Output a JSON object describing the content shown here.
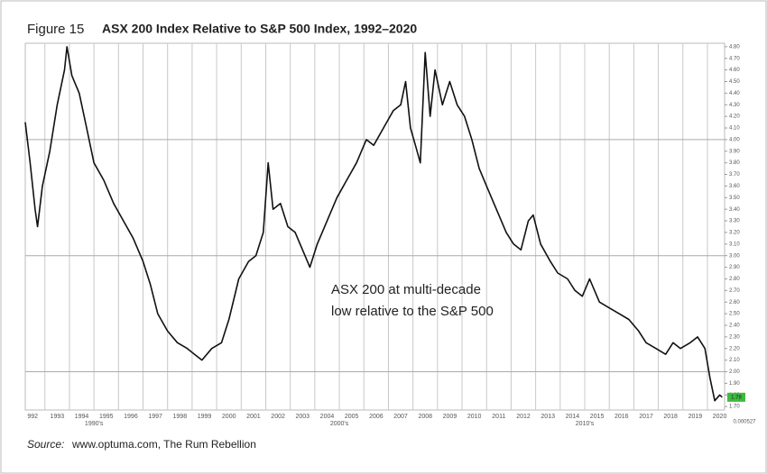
{
  "chart_data": {
    "type": "line",
    "figure_label": "Figure 15",
    "title": "ASX 200 Index Relative to S&P 500 Index, 1992–2020",
    "annotation": [
      "ASX 200 at multi-decade",
      "low relative to the S&P 500"
    ],
    "source_label": "Source:",
    "source": "www.optuma.com, The Rum Rebellion",
    "decade_labels": [
      "1990's",
      "2000's",
      "2010's"
    ],
    "last_value_label": "1.78",
    "footer_value": "0.000527",
    "x": [
      1992.2,
      1992.4,
      1992.6,
      1992.7,
      1992.9,
      1993.2,
      1993.5,
      1993.8,
      1993.9,
      1994.1,
      1994.4,
      1994.7,
      1995.0,
      1995.4,
      1995.8,
      1996.2,
      1996.6,
      1997.0,
      1997.3,
      1997.6,
      1998.0,
      1998.4,
      1998.8,
      1999.1,
      1999.4,
      1999.8,
      2000.2,
      2000.5,
      2000.9,
      2001.3,
      2001.6,
      2001.9,
      2002.1,
      2002.3,
      2002.6,
      2002.9,
      2003.2,
      2003.6,
      2003.8,
      2004.1,
      2004.5,
      2004.9,
      2005.3,
      2005.7,
      2006.1,
      2006.4,
      2006.8,
      2007.2,
      2007.5,
      2007.7,
      2007.9,
      2008.1,
      2008.3,
      2008.5,
      2008.7,
      2008.9,
      2009.2,
      2009.5,
      2009.8,
      2010.1,
      2010.4,
      2010.7,
      2011.0,
      2011.4,
      2011.8,
      2012.1,
      2012.4,
      2012.7,
      2012.9,
      2013.2,
      2013.6,
      2013.9,
      2014.3,
      2014.6,
      2014.9,
      2015.2,
      2015.6,
      2016.0,
      2016.4,
      2016.8,
      2017.2,
      2017.5,
      2017.9,
      2018.3,
      2018.6,
      2018.9,
      2019.3,
      2019.6,
      2019.9,
      2020.1,
      2020.3,
      2020.5,
      2020.6
    ],
    "series": [
      {
        "color": "#111111",
        "values": [
          4.15,
          3.8,
          3.4,
          3.25,
          3.6,
          3.9,
          4.3,
          4.6,
          4.8,
          4.55,
          4.4,
          4.1,
          3.8,
          3.65,
          3.45,
          3.3,
          3.15,
          2.95,
          2.75,
          2.5,
          2.35,
          2.25,
          2.2,
          2.15,
          2.1,
          2.2,
          2.25,
          2.45,
          2.8,
          2.95,
          3.0,
          3.2,
          3.8,
          3.4,
          3.45,
          3.25,
          3.2,
          3.0,
          2.9,
          3.1,
          3.3,
          3.5,
          3.65,
          3.8,
          4.0,
          3.95,
          4.1,
          4.25,
          4.3,
          4.5,
          4.1,
          3.95,
          3.8,
          4.75,
          4.2,
          4.6,
          4.3,
          4.5,
          4.3,
          4.2,
          4.0,
          3.75,
          3.6,
          3.4,
          3.2,
          3.1,
          3.05,
          3.3,
          3.35,
          3.1,
          2.95,
          2.85,
          2.8,
          2.7,
          2.65,
          2.8,
          2.6,
          2.55,
          2.5,
          2.45,
          2.35,
          2.25,
          2.2,
          2.15,
          2.25,
          2.2,
          2.25,
          2.3,
          2.2,
          1.95,
          1.75,
          1.8,
          1.78
        ]
      }
    ],
    "xlim": [
      1992.2,
      2020.7
    ],
    "xticks": [
      {
        "value": 1992,
        "label": "992"
      },
      1993,
      1994,
      1995,
      1996,
      1997,
      1998,
      1999,
      2000,
      2001,
      2002,
      2003,
      2004,
      2005,
      2006,
      2007,
      2008,
      2009,
      2010,
      2011,
      2012,
      2013,
      2014,
      2015,
      2016,
      2017,
      2018,
      2019,
      2020
    ],
    "ylim": [
      1.67,
      4.83
    ],
    "yticks": [
      {
        "value": 1.7,
        "label": "1.70"
      },
      {
        "value": 1.8,
        "label": "1.80"
      },
      {
        "value": 1.9,
        "label": "1.90"
      },
      {
        "value": 2.0,
        "label": "2.00"
      },
      {
        "value": 2.1,
        "label": "2.10"
      },
      {
        "value": 2.2,
        "label": "2.20"
      },
      {
        "value": 2.3,
        "label": "2.30"
      },
      {
        "value": 2.4,
        "label": "2.40"
      },
      {
        "value": 2.5,
        "label": "2.50"
      },
      {
        "value": 2.6,
        "label": "2.60"
      },
      {
        "value": 2.7,
        "label": "2.70"
      },
      {
        "value": 2.8,
        "label": "2.80"
      },
      {
        "value": 2.9,
        "label": "2.90"
      },
      {
        "value": 3.0,
        "label": "3.00"
      },
      {
        "value": 3.1,
        "label": "3.10"
      },
      {
        "value": 3.2,
        "label": "3.20"
      },
      {
        "value": 3.3,
        "label": "3.30"
      },
      {
        "value": 3.4,
        "label": "3.40"
      },
      {
        "value": 3.5,
        "label": "3.50"
      },
      {
        "value": 3.6,
        "label": "3.60"
      },
      {
        "value": 3.7,
        "label": "3.70"
      },
      {
        "value": 3.8,
        "label": "3.80"
      },
      {
        "value": 3.9,
        "label": "3.90"
      },
      {
        "value": 4.0,
        "label": "4.00"
      },
      {
        "value": 4.1,
        "label": "4.10"
      },
      {
        "value": 4.2,
        "label": "4.20"
      },
      {
        "value": 4.3,
        "label": "4.30"
      },
      {
        "value": 4.4,
        "label": "4.40"
      },
      {
        "value": 4.5,
        "label": "4.50"
      },
      {
        "value": 4.6,
        "label": "4.60"
      },
      {
        "value": 4.7,
        "label": "4.70"
      },
      {
        "value": 4.8,
        "label": "4.80"
      }
    ],
    "major_gridlines": [
      2,
      3,
      4
    ],
    "annotation_color": "#3a9a2c",
    "label_box_color": "#3fb93f"
  }
}
